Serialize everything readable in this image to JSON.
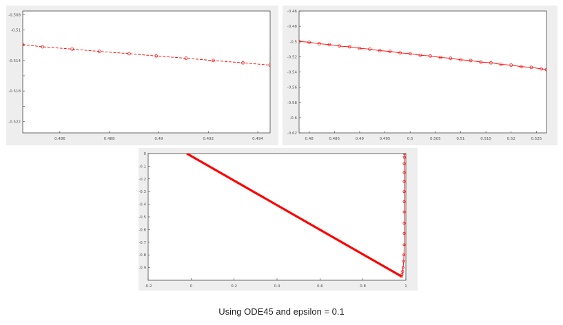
{
  "caption": "Using ODE45 and epsilon = 0.1",
  "colors": {
    "series": "#ff0000",
    "axes": "#444444",
    "panel_bg": "#eeeeee",
    "plot_bg": "#ffffff"
  },
  "chart_data": [
    {
      "type": "line",
      "title": "",
      "xlabel": "",
      "ylabel": "",
      "grid": false,
      "xlim": [
        0.4845,
        0.4945
      ],
      "ylim": [
        -0.5235,
        -0.5075
      ],
      "xticks": [
        0.486,
        0.488,
        0.49,
        0.492,
        0.494
      ],
      "xtick_labels": [
        "0.486",
        "0.488",
        "0.49",
        "0.492",
        "0.494"
      ],
      "yticks": [
        -0.522,
        -0.52,
        -0.518,
        -0.516,
        -0.514,
        -0.512,
        -0.51,
        -0.508
      ],
      "ytick_labels": [
        "-0.522",
        "",
        "-0.518",
        "",
        "-0.514",
        "",
        "-0.51",
        "-0.508"
      ],
      "marker": "circle",
      "line_style": "dashed",
      "series": [
        {
          "x": [
            0.4845,
            0.4853,
            0.4865,
            0.4876,
            0.4888,
            0.4899,
            0.4911,
            0.4922,
            0.4934,
            0.4945
          ],
          "y": [
            -0.5119,
            -0.5122,
            -0.5125,
            -0.5128,
            -0.5131,
            -0.5134,
            -0.5137,
            -0.514,
            -0.5143,
            -0.5146
          ]
        }
      ]
    },
    {
      "type": "line",
      "title": "",
      "xlabel": "",
      "ylabel": "",
      "grid": false,
      "xlim": [
        0.478,
        0.527
      ],
      "ylim": [
        -0.62,
        -0.46
      ],
      "xticks": [
        0.48,
        0.485,
        0.49,
        0.495,
        0.5,
        0.505,
        0.51,
        0.515,
        0.52,
        0.525
      ],
      "xtick_labels": [
        "0.48",
        "0.485",
        "0.49",
        "0.495",
        "0.5",
        "0.505",
        "0.51",
        "0.515",
        "0.52",
        "0.525"
      ],
      "yticks": [
        -0.62,
        -0.6,
        -0.58,
        -0.56,
        -0.54,
        -0.52,
        -0.5,
        -0.48,
        -0.46
      ],
      "ytick_labels": [
        "-0.62",
        "-0.6",
        "-0.58",
        "-0.56",
        "-0.54",
        "-0.52",
        "-0.5",
        "-0.48",
        "-0.46"
      ],
      "marker": "circle",
      "line_style": "solid",
      "series": [
        {
          "x": [
            0.478,
            0.48,
            0.482,
            0.484,
            0.486,
            0.488,
            0.49,
            0.492,
            0.494,
            0.496,
            0.498,
            0.5,
            0.502,
            0.504,
            0.506,
            0.508,
            0.51,
            0.512,
            0.514,
            0.516,
            0.518,
            0.52,
            0.522,
            0.524,
            0.526,
            0.527
          ],
          "y": [
            -0.5,
            -0.501,
            -0.503,
            -0.504,
            -0.506,
            -0.507,
            -0.509,
            -0.51,
            -0.512,
            -0.513,
            -0.515,
            -0.516,
            -0.518,
            -0.519,
            -0.521,
            -0.522,
            -0.524,
            -0.525,
            -0.527,
            -0.528,
            -0.53,
            -0.531,
            -0.533,
            -0.534,
            -0.536,
            -0.537
          ]
        }
      ]
    },
    {
      "type": "line",
      "title": "",
      "xlabel": "",
      "ylabel": "",
      "grid": false,
      "xlim": [
        -0.2,
        1.0
      ],
      "ylim": [
        -1.0,
        0.0
      ],
      "xticks": [
        -0.2,
        0,
        0.2,
        0.4,
        0.6,
        0.8,
        1
      ],
      "xtick_labels": [
        "-0.2",
        "0",
        "0.2",
        "0.4",
        "0.6",
        "0.8",
        "1"
      ],
      "yticks": [
        0,
        -0.1,
        -0.2,
        -0.3,
        -0.4,
        -0.5,
        -0.6,
        -0.7,
        -0.8,
        -0.9
      ],
      "ytick_labels": [
        "0",
        "-0.1",
        "-0.2",
        "-0.3",
        "-0.4",
        "-0.5",
        "-0.6",
        "-0.7",
        "-0.8",
        "-0.9"
      ],
      "marker": "circle",
      "line_style": "solid",
      "series": [
        {
          "x": [
            -0.02,
            0.98
          ],
          "y": [
            0.0,
            -0.97
          ],
          "thick": true
        },
        {
          "x": [
            0.98,
            0.982,
            0.985,
            0.987,
            0.99,
            0.991,
            0.992,
            0.992,
            0.992,
            0.992,
            0.992,
            0.992,
            0.992,
            0.992,
            0.992,
            0.993,
            0.993
          ],
          "y": [
            -0.97,
            -0.955,
            -0.93,
            -0.9,
            -0.85,
            -0.8,
            -0.72,
            -0.63,
            -0.55,
            -0.46,
            -0.38,
            -0.3,
            -0.22,
            -0.15,
            -0.08,
            -0.03,
            0.0
          ],
          "thick": false
        }
      ]
    }
  ]
}
